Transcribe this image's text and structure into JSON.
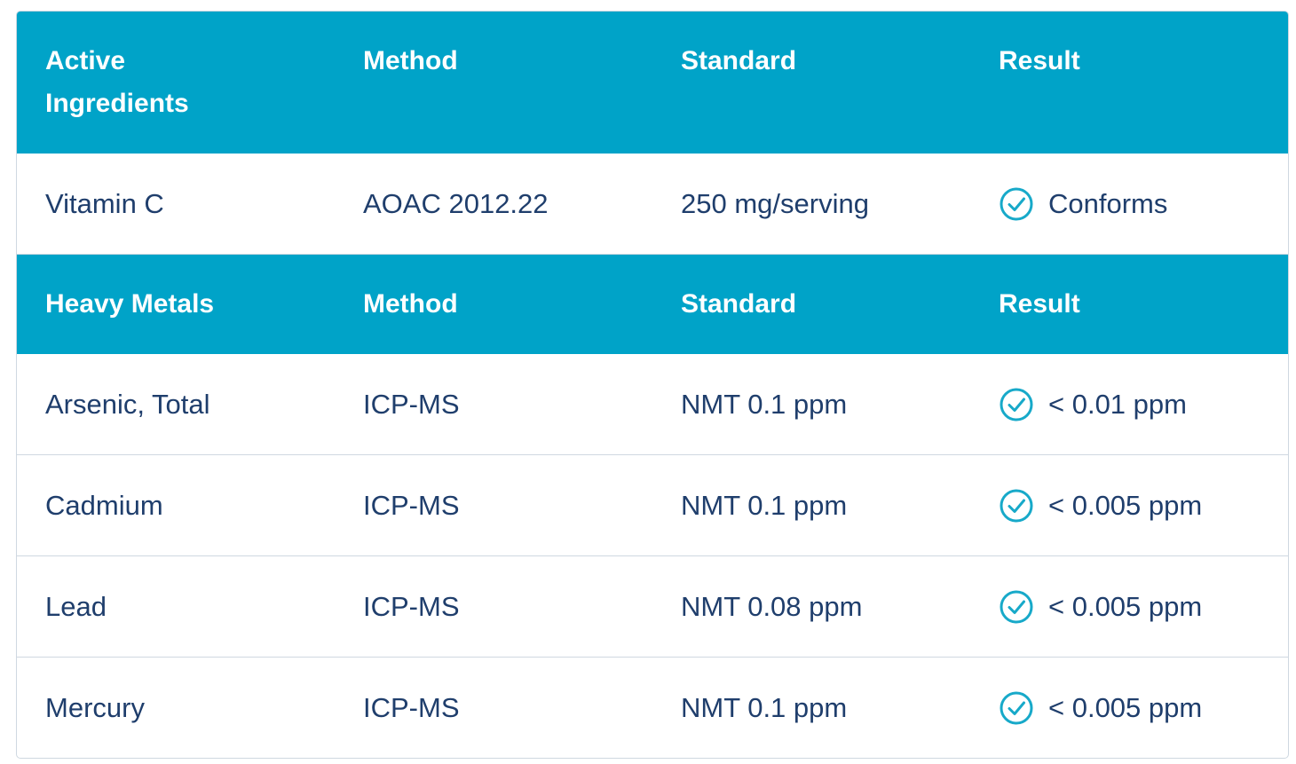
{
  "sections": [
    {
      "header": [
        "Active Ingredients",
        "Method",
        "Standard",
        "Result"
      ],
      "rows": [
        [
          "Vitamin C",
          "AOAC 2012.22",
          "250 mg/serving",
          "Conforms"
        ]
      ]
    },
    {
      "header": [
        "Heavy Metals",
        "Method",
        "Standard",
        "Result"
      ],
      "rows": [
        [
          "Arsenic, Total",
          "ICP-MS",
          "NMT 0.1 ppm",
          "< 0.01 ppm"
        ],
        [
          "Cadmium",
          "ICP-MS",
          "NMT 0.1 ppm",
          "< 0.005 ppm"
        ],
        [
          "Lead",
          "ICP-MS",
          "NMT 0.08 ppm",
          "< 0.005 ppm"
        ],
        [
          "Mercury",
          "ICP-MS",
          "NMT 0.1 ppm",
          "< 0.005 ppm"
        ]
      ]
    }
  ]
}
